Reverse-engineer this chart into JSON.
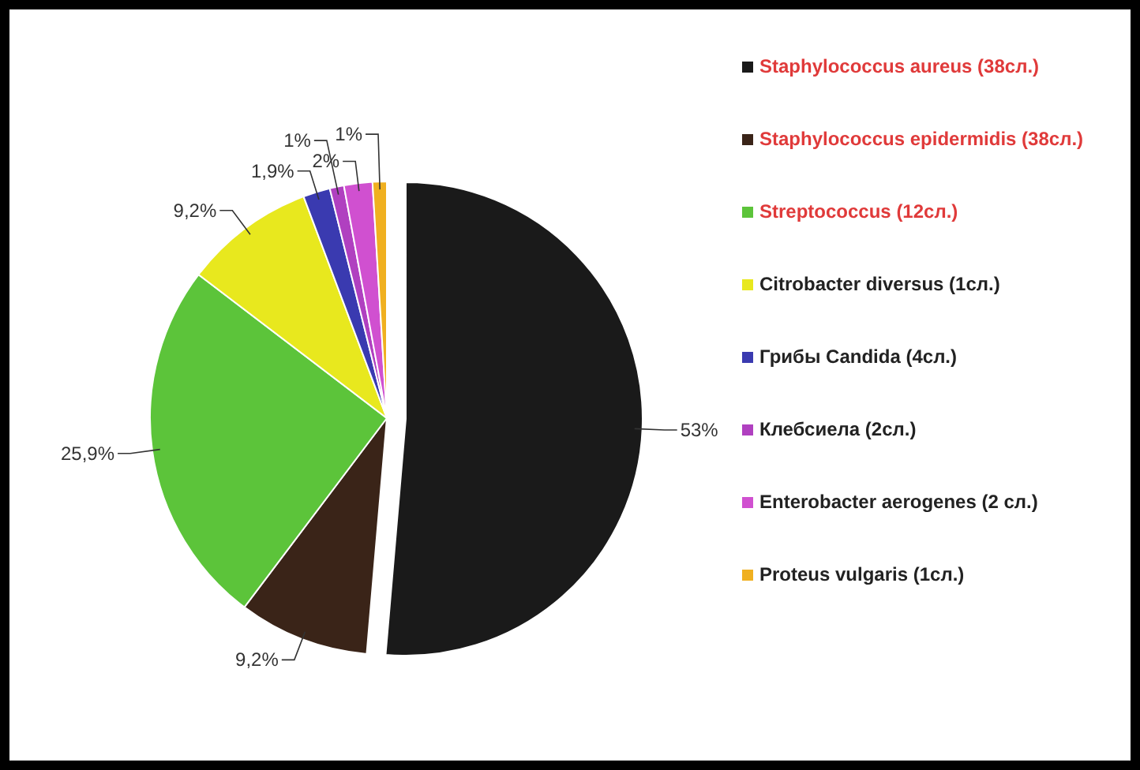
{
  "chart_data": {
    "type": "pie",
    "categories": [
      "Staphylococcus aureus (38сл.)",
      "Staphylococcus epidermidis (38сл.)",
      "Streptococcus (12сл.)",
      "Citrobacter diversus (1сл.)",
      "Грибы Candida (4сл.)",
      "Клебсиела (2сл.)",
      "Enterobacter aerogenes (2 сл.)",
      "Proteus vulgaris (1сл.)"
    ],
    "values": [
      53,
      9.2,
      25.9,
      9.2,
      1.9,
      1,
      2,
      1
    ],
    "value_labels": [
      "53%",
      "9,2%",
      "25,9%",
      "9,2%",
      "1,9%",
      "1%",
      "2%",
      "1%"
    ],
    "colors": [
      "#1a1a1a",
      "#3a2418",
      "#5cc43a",
      "#e8e81e",
      "#3a3ab0",
      "#b040c0",
      "#d050d0",
      "#f0b020"
    ],
    "legend": "right"
  }
}
